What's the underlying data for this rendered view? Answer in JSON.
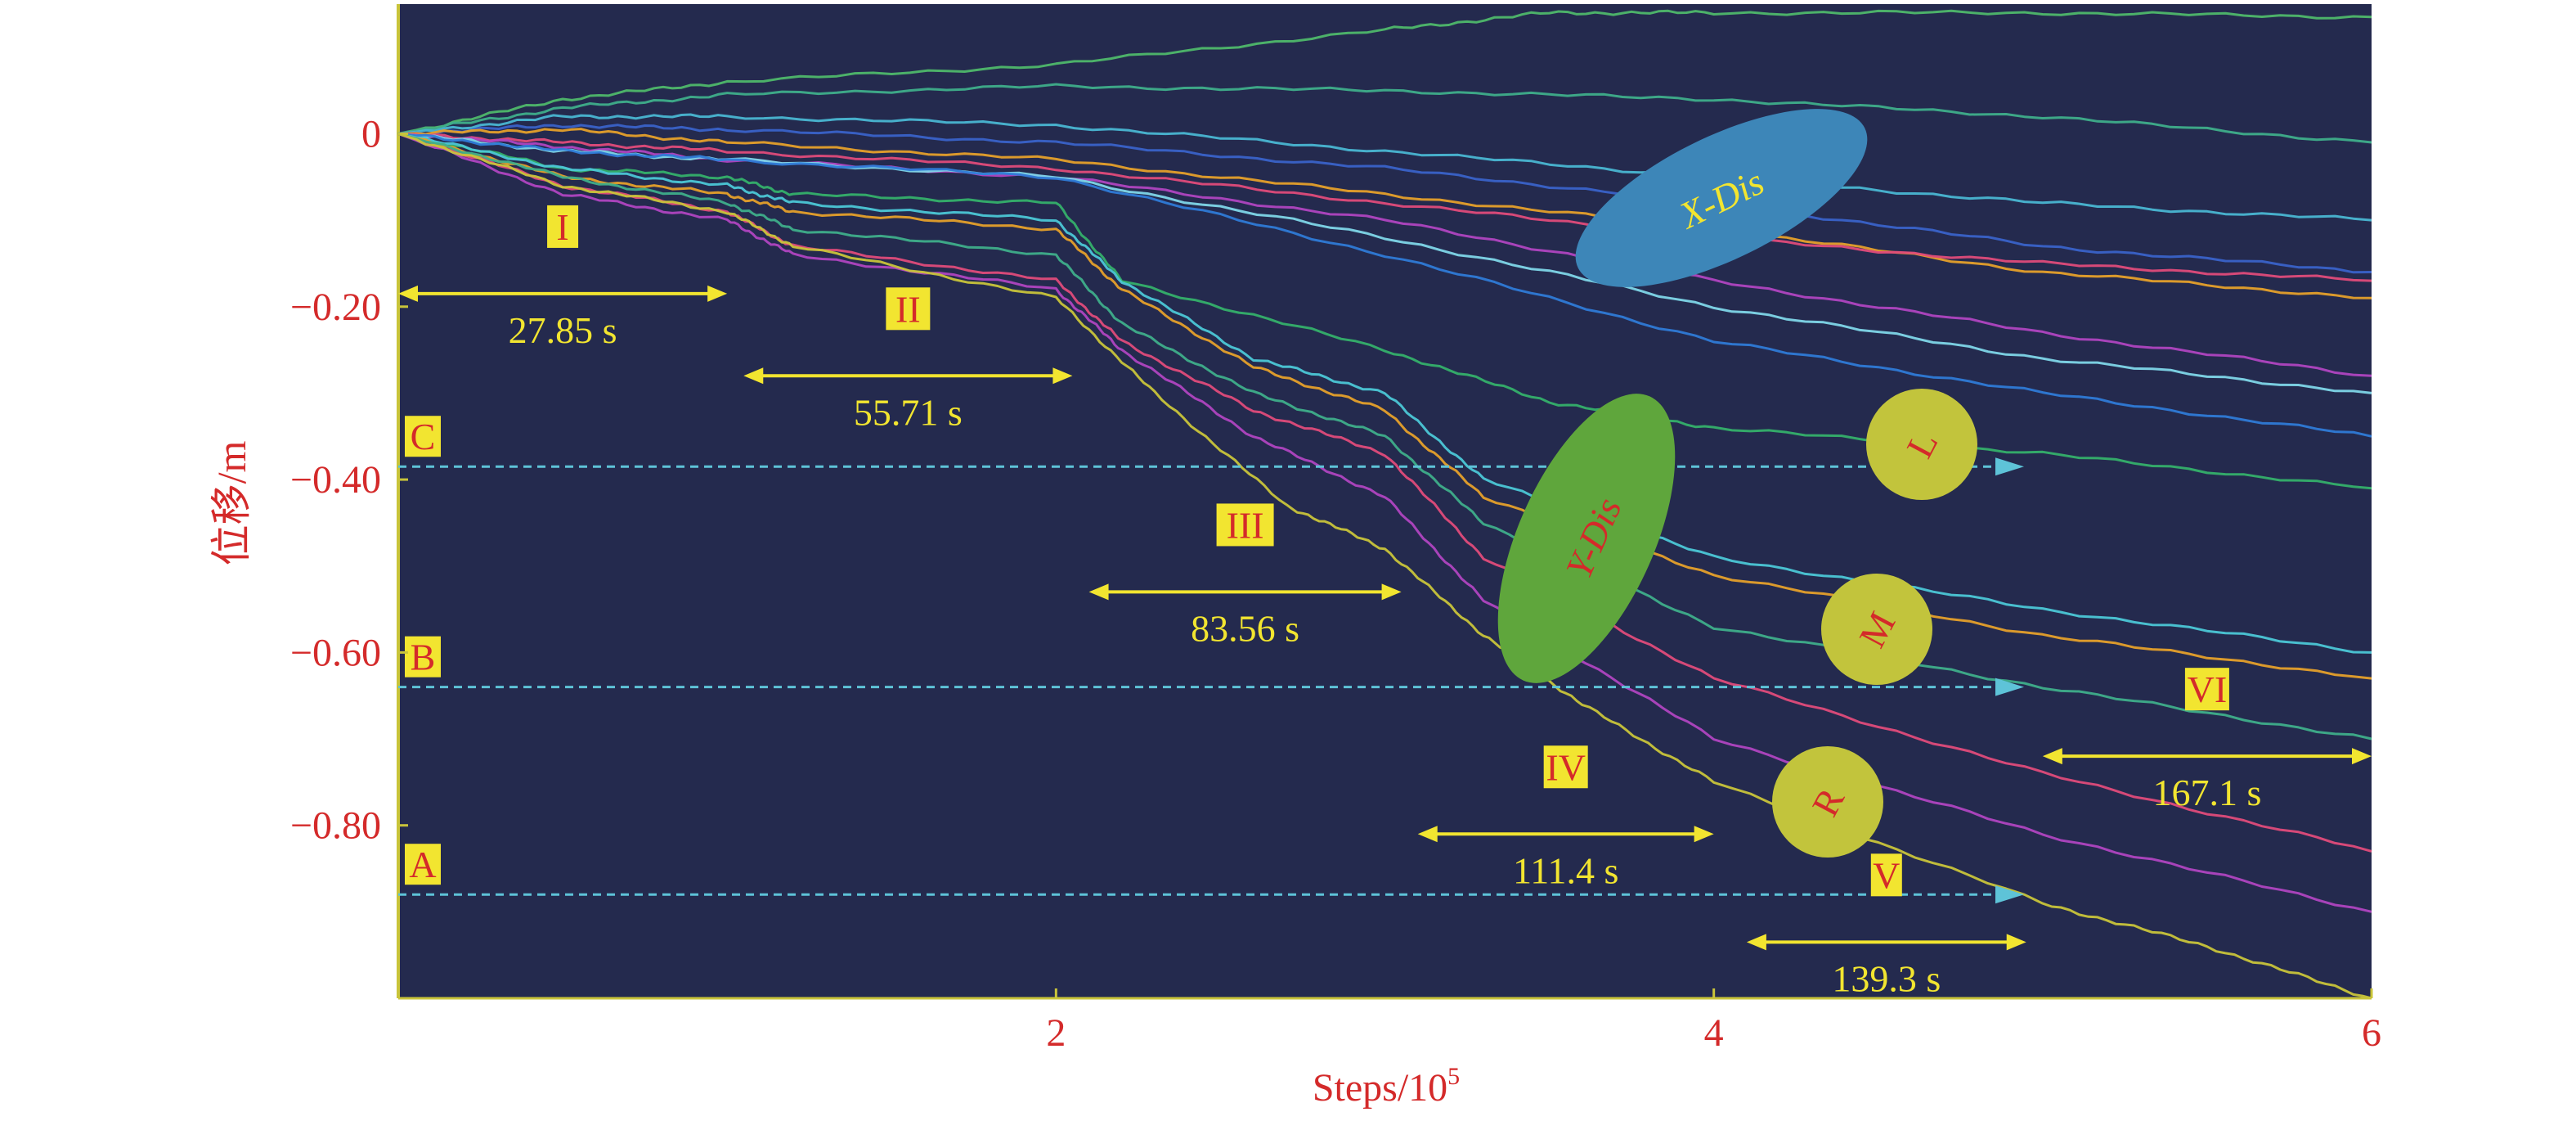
{
  "chart_data": {
    "type": "line",
    "xlabel": "Steps/10",
    "xlabel_sup": "5",
    "ylabel": "位移/m",
    "xlim": [
      0,
      6
    ],
    "ylim": [
      -1.0,
      0.15
    ],
    "x_ticks": [
      2,
      4,
      6
    ],
    "y_ticks": [
      {
        "value": 0,
        "label": "0"
      },
      {
        "value": -0.2,
        "label": "−0.20"
      },
      {
        "value": -0.4,
        "label": "−0.40"
      },
      {
        "value": -0.6,
        "label": "−0.60"
      },
      {
        "value": -0.8,
        "label": "−0.80"
      }
    ],
    "monitor_lines": [
      {
        "label": "C",
        "y": -0.385
      },
      {
        "label": "B",
        "y": -0.64
      },
      {
        "label": "A",
        "y": -0.88
      }
    ],
    "stages": [
      {
        "roman": "I",
        "time": "27.85 s",
        "x_start": 0.0,
        "x_end": 1.0,
        "y": -0.185
      },
      {
        "roman": "II",
        "time": "55.71 s",
        "x_start": 1.05,
        "x_end": 2.05,
        "y": -0.28
      },
      {
        "roman": "III",
        "time": "83.56 s",
        "x_start": 2.1,
        "x_end": 3.05,
        "y": -0.53
      },
      {
        "roman": "IV",
        "time": "111.4 s",
        "x_start": 3.1,
        "x_end": 4.0,
        "y": -0.81
      },
      {
        "roman": "V",
        "time": "139.3 s",
        "x_start": 4.1,
        "x_end": 4.95,
        "y": -0.935
      },
      {
        "roman": "VI",
        "time": "167.1 s",
        "x_start": 5.0,
        "x_end": 6.0,
        "y": -0.72
      }
    ],
    "region_labels": {
      "x_dis": "X-Dis",
      "y_dis": "Y-Dis",
      "circles": [
        "L",
        "M",
        "R"
      ]
    },
    "series": [
      {
        "color": "#4fb86a",
        "values": [
          [
            0,
            0
          ],
          [
            0.5,
            0.04
          ],
          [
            1,
            0.06
          ],
          [
            2,
            0.08
          ],
          [
            3,
            0.12
          ],
          [
            3.5,
            0.14
          ],
          [
            4,
            0.14
          ],
          [
            5,
            0.14
          ],
          [
            6,
            0.135
          ]
        ]
      },
      {
        "color": "#3fae8a",
        "values": [
          [
            0,
            0
          ],
          [
            0.5,
            0.03
          ],
          [
            1,
            0.045
          ],
          [
            2,
            0.055
          ],
          [
            3,
            0.05
          ],
          [
            4,
            0.04
          ],
          [
            5,
            0.02
          ],
          [
            6,
            -0.01
          ]
        ]
      },
      {
        "color": "#4ab6d2",
        "values": [
          [
            0,
            0
          ],
          [
            0.5,
            0.02
          ],
          [
            1,
            0.02
          ],
          [
            2,
            0.01
          ],
          [
            3,
            -0.02
          ],
          [
            4,
            -0.05
          ],
          [
            5,
            -0.08
          ],
          [
            6,
            -0.1
          ]
        ]
      },
      {
        "color": "#3a62c8",
        "values": [
          [
            0,
            0
          ],
          [
            0.5,
            0.01
          ],
          [
            1,
            0.005
          ],
          [
            2,
            -0.01
          ],
          [
            3,
            -0.04
          ],
          [
            4,
            -0.08
          ],
          [
            5,
            -0.13
          ],
          [
            6,
            -0.16
          ]
        ]
      },
      {
        "color": "#e6a02a",
        "values": [
          [
            0,
            0
          ],
          [
            0.5,
            0.005
          ],
          [
            1,
            -0.01
          ],
          [
            2,
            -0.03
          ],
          [
            3,
            -0.07
          ],
          [
            4,
            -0.11
          ],
          [
            5,
            -0.16
          ],
          [
            6,
            -0.19
          ]
        ]
      },
      {
        "color": "#e04b7a",
        "values": [
          [
            0,
            0
          ],
          [
            0.5,
            -0.01
          ],
          [
            1,
            -0.02
          ],
          [
            2,
            -0.04
          ],
          [
            3,
            -0.08
          ],
          [
            4,
            -0.12
          ],
          [
            5,
            -0.15
          ],
          [
            6,
            -0.17
          ]
        ]
      },
      {
        "color": "#b044c0",
        "values": [
          [
            0,
            0
          ],
          [
            0.5,
            -0.015
          ],
          [
            1,
            -0.03
          ],
          [
            2,
            -0.05
          ],
          [
            3,
            -0.1
          ],
          [
            4,
            -0.17
          ],
          [
            5,
            -0.23
          ],
          [
            6,
            -0.28
          ]
        ]
      },
      {
        "color": "#7fd6e8",
        "values": [
          [
            0,
            0
          ],
          [
            0.5,
            -0.02
          ],
          [
            1,
            -0.03
          ],
          [
            2,
            -0.05
          ],
          [
            3,
            -0.12
          ],
          [
            4,
            -0.2
          ],
          [
            5,
            -0.26
          ],
          [
            6,
            -0.3
          ]
        ]
      },
      {
        "color": "#2f7ad6",
        "values": [
          [
            0,
            0
          ],
          [
            0.5,
            -0.02
          ],
          [
            1,
            -0.03
          ],
          [
            2,
            -0.05
          ],
          [
            3,
            -0.14
          ],
          [
            4,
            -0.24
          ],
          [
            5,
            -0.3
          ],
          [
            6,
            -0.35
          ]
        ]
      },
      {
        "color": "#35b06a",
        "values": [
          [
            0,
            0
          ],
          [
            0.5,
            -0.04
          ],
          [
            1,
            -0.05
          ],
          [
            1.2,
            -0.07
          ],
          [
            2,
            -0.08
          ],
          [
            2.2,
            -0.17
          ],
          [
            3,
            -0.25
          ],
          [
            3.5,
            -0.31
          ],
          [
            4,
            -0.34
          ],
          [
            5,
            -0.37
          ],
          [
            6,
            -0.41
          ]
        ]
      },
      {
        "color": "#4cc7d6",
        "values": [
          [
            0,
            0
          ],
          [
            0.5,
            -0.04
          ],
          [
            1,
            -0.06
          ],
          [
            1.2,
            -0.08
          ],
          [
            2,
            -0.1
          ],
          [
            2.2,
            -0.17
          ],
          [
            2.6,
            -0.26
          ],
          [
            3,
            -0.3
          ],
          [
            3.3,
            -0.4
          ],
          [
            4,
            -0.49
          ],
          [
            5,
            -0.55
          ],
          [
            6,
            -0.6
          ]
        ]
      },
      {
        "color": "#e6a02a",
        "values": [
          [
            0,
            0
          ],
          [
            0.5,
            -0.05
          ],
          [
            1,
            -0.07
          ],
          [
            1.2,
            -0.09
          ],
          [
            2,
            -0.11
          ],
          [
            2.2,
            -0.18
          ],
          [
            2.6,
            -0.27
          ],
          [
            3,
            -0.32
          ],
          [
            3.3,
            -0.42
          ],
          [
            4,
            -0.51
          ],
          [
            5,
            -0.58
          ],
          [
            6,
            -0.63
          ]
        ]
      },
      {
        "color": "#e04b7a",
        "values": [
          [
            0,
            0
          ],
          [
            0.5,
            -0.06
          ],
          [
            1,
            -0.09
          ],
          [
            1.2,
            -0.13
          ],
          [
            2,
            -0.17
          ],
          [
            2.2,
            -0.24
          ],
          [
            2.6,
            -0.32
          ],
          [
            3,
            -0.37
          ],
          [
            3.3,
            -0.49
          ],
          [
            4,
            -0.63
          ],
          [
            5,
            -0.74
          ],
          [
            6,
            -0.83
          ]
        ]
      },
      {
        "color": "#b044c0",
        "values": [
          [
            0,
            0
          ],
          [
            0.5,
            -0.07
          ],
          [
            1,
            -0.1
          ],
          [
            1.2,
            -0.14
          ],
          [
            2,
            -0.18
          ],
          [
            2.2,
            -0.25
          ],
          [
            2.6,
            -0.35
          ],
          [
            3,
            -0.42
          ],
          [
            3.3,
            -0.54
          ],
          [
            4,
            -0.7
          ],
          [
            5,
            -0.81
          ],
          [
            6,
            -0.9
          ]
        ]
      },
      {
        "color": "#3fae8a",
        "values": [
          [
            0,
            0
          ],
          [
            0.5,
            -0.05
          ],
          [
            1,
            -0.08
          ],
          [
            1.2,
            -0.11
          ],
          [
            2,
            -0.14
          ],
          [
            2.2,
            -0.22
          ],
          [
            2.6,
            -0.3
          ],
          [
            3,
            -0.35
          ],
          [
            3.3,
            -0.45
          ],
          [
            4,
            -0.57
          ],
          [
            5,
            -0.64
          ],
          [
            6,
            -0.7
          ]
        ]
      },
      {
        "color": "#c9c43a",
        "values": [
          [
            0,
            0
          ],
          [
            0.5,
            -0.06
          ],
          [
            1,
            -0.09
          ],
          [
            1.2,
            -0.13
          ],
          [
            2,
            -0.19
          ],
          [
            2.3,
            -0.3
          ],
          [
            2.7,
            -0.43
          ],
          [
            3,
            -0.48
          ],
          [
            3.3,
            -0.58
          ],
          [
            3.6,
            -0.66
          ],
          [
            4,
            -0.75
          ],
          [
            5,
            -0.89
          ],
          [
            5.5,
            -0.94
          ],
          [
            6,
            -1.0
          ]
        ]
      }
    ]
  }
}
